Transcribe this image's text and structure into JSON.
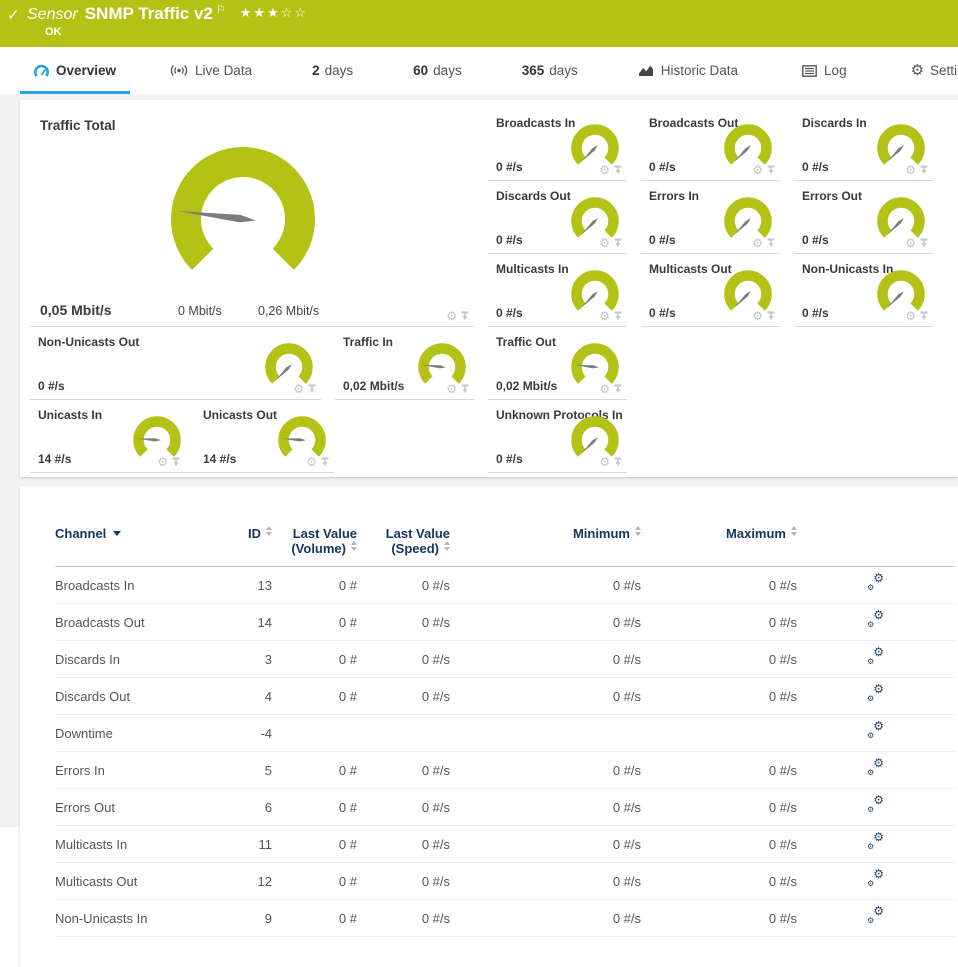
{
  "titlebar": {
    "status_check": "✓",
    "kind": "Sensor",
    "title": "SNMP Traffic v2",
    "flag": "⚐",
    "stars": "★★★☆☆",
    "status": "OK"
  },
  "tabs": [
    {
      "label": "Overview"
    },
    {
      "label": "Live Data"
    },
    {
      "num": "2",
      "label": "days"
    },
    {
      "num": "60",
      "label": "days"
    },
    {
      "num": "365",
      "label": "days"
    },
    {
      "label": "Historic Data"
    },
    {
      "label": "Log"
    },
    {
      "label": "Settings"
    }
  ],
  "gauges": {
    "main": {
      "title": "Traffic Total",
      "value": "0,05 Mbit/s",
      "scale_min": "0 Mbit/s",
      "scale_max": "0,26 Mbit/s",
      "needle_deg": 187
    },
    "small": [
      {
        "title": "Broadcasts In",
        "value": "0 #/s",
        "needle_deg": 135
      },
      {
        "title": "Broadcasts Out",
        "value": "0 #/s",
        "needle_deg": 135
      },
      {
        "title": "Discards In",
        "value": "0 #/s",
        "needle_deg": 135
      },
      {
        "title": "Discards Out",
        "value": "0 #/s",
        "needle_deg": 135
      },
      {
        "title": "Errors In",
        "value": "0 #/s",
        "needle_deg": 135
      },
      {
        "title": "Errors Out",
        "value": "0 #/s",
        "needle_deg": 135
      },
      {
        "title": "Multicasts In",
        "value": "0 #/s",
        "needle_deg": 135
      },
      {
        "title": "Multicasts Out",
        "value": "0 #/s",
        "needle_deg": 135
      },
      {
        "title": "Non-Unicasts In",
        "value": "0 #/s",
        "needle_deg": 135
      },
      {
        "title": "Non-Unicasts Out",
        "value": "0 #/s",
        "needle_deg": 135
      },
      {
        "title": "Traffic In",
        "value": "0,02 Mbit/s",
        "needle_deg": 186
      },
      {
        "title": "Traffic Out",
        "value": "0,02 Mbit/s",
        "needle_deg": 186
      },
      {
        "title": "Unicasts In",
        "value": "14 #/s",
        "needle_deg": 184
      },
      {
        "title": "Unicasts Out",
        "value": "14 #/s",
        "needle_deg": 184
      },
      {
        "title": "Unknown Protocols In",
        "value": "0 #/s",
        "needle_deg": 135
      }
    ]
  },
  "table": {
    "columns": [
      {
        "l1": "Channel"
      },
      {
        "l1": "ID"
      },
      {
        "l1": "Last Value",
        "l2": "(Volume)"
      },
      {
        "l1": "Last Value",
        "l2": "(Speed)"
      },
      {
        "l1": "Minimum"
      },
      {
        "l1": "Maximum"
      }
    ],
    "rows": [
      {
        "channel": "Broadcasts In",
        "id": "13",
        "vol": "0 #",
        "speed": "0 #/s",
        "min": "0 #/s",
        "max": "0 #/s"
      },
      {
        "channel": "Broadcasts Out",
        "id": "14",
        "vol": "0 #",
        "speed": "0 #/s",
        "min": "0 #/s",
        "max": "0 #/s"
      },
      {
        "channel": "Discards In",
        "id": "3",
        "vol": "0 #",
        "speed": "0 #/s",
        "min": "0 #/s",
        "max": "0 #/s"
      },
      {
        "channel": "Discards Out",
        "id": "4",
        "vol": "0 #",
        "speed": "0 #/s",
        "min": "0 #/s",
        "max": "0 #/s"
      },
      {
        "channel": "Downtime",
        "id": "-4",
        "vol": "",
        "speed": "",
        "min": "",
        "max": ""
      },
      {
        "channel": "Errors In",
        "id": "5",
        "vol": "0 #",
        "speed": "0 #/s",
        "min": "0 #/s",
        "max": "0 #/s"
      },
      {
        "channel": "Errors Out",
        "id": "6",
        "vol": "0 #",
        "speed": "0 #/s",
        "min": "0 #/s",
        "max": "0 #/s"
      },
      {
        "channel": "Multicasts In",
        "id": "11",
        "vol": "0 #",
        "speed": "0 #/s",
        "min": "0 #/s",
        "max": "0 #/s"
      },
      {
        "channel": "Multicasts Out",
        "id": "12",
        "vol": "0 #",
        "speed": "0 #/s",
        "min": "0 #/s",
        "max": "0 #/s"
      },
      {
        "channel": "Non-Unicasts In",
        "id": "9",
        "vol": "0 #",
        "speed": "0 #/s",
        "min": "0 #/s",
        "max": "0 #/s"
      }
    ]
  },
  "colors": {
    "brand_green": "#b4c216",
    "tab_blue": "#2aa3dc",
    "header_navy": "#14355f",
    "needle_gray": "#7d7d7d"
  }
}
